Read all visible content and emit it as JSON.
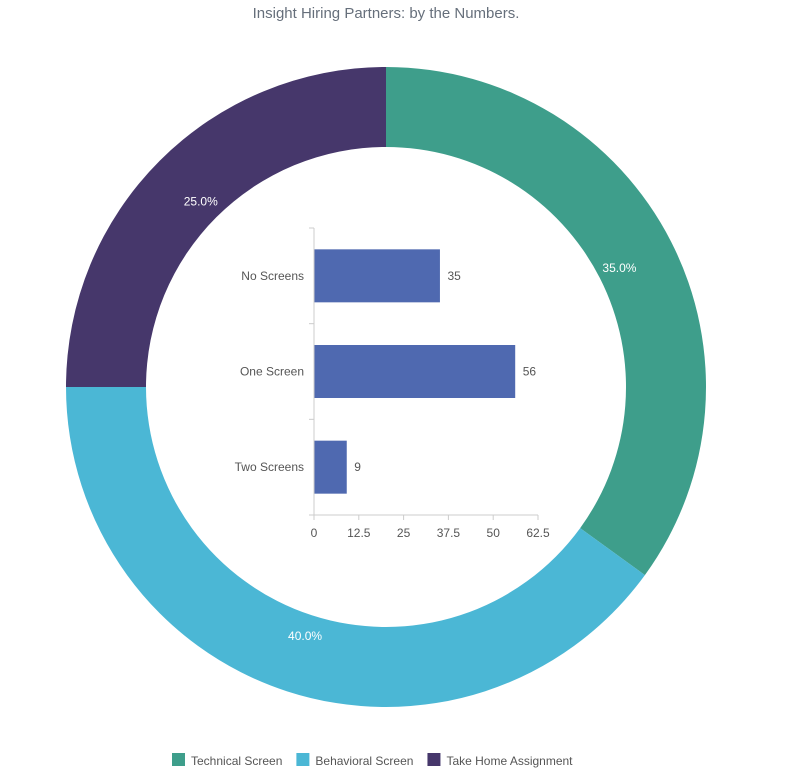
{
  "chart_data": [
    {
      "type": "pie",
      "title": "Insight Hiring Partners: by the Numbers.",
      "donut": true,
      "categories": [
        "Technical Screen",
        "Behavioral Screen",
        "Take Home Assignment"
      ],
      "values": [
        35,
        40,
        25
      ],
      "labels": [
        "35.0%",
        "40.0%",
        "25.0%"
      ],
      "colors": [
        "#3e9e8b",
        "#4bb7d5",
        "#46376b"
      ],
      "legend": "bottom"
    },
    {
      "type": "bar",
      "orientation": "horizontal",
      "categories": [
        "No Screens",
        "One Screen",
        "Two Screens"
      ],
      "values": [
        35,
        56,
        9
      ],
      "value_labels": [
        "35",
        "56",
        "9"
      ],
      "xlim": [
        0,
        62.5
      ],
      "xticks": [
        "0",
        "12.5",
        "25",
        "37.5",
        "50",
        "62.5"
      ],
      "xtick_values": [
        0,
        12.5,
        25,
        37.5,
        50,
        62.5
      ],
      "color": "#4f69b0",
      "grid": false
    }
  ]
}
